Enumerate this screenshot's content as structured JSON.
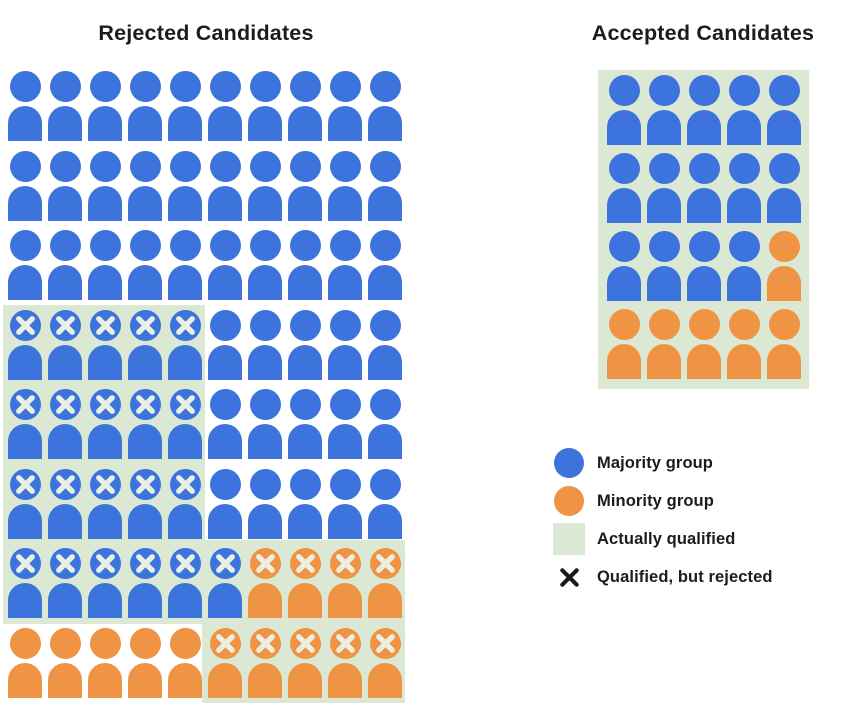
{
  "titles": {
    "rejected": "Rejected Candidates",
    "accepted": "Accepted Candidates"
  },
  "colors": {
    "majority": "#3D73DC",
    "minority": "#EF9444",
    "qualified_bg": "#DBE9D4",
    "x_mark": "#E9F0E2",
    "legend_x": "#1A1A1A",
    "text": "#1C1C1C"
  },
  "rejected_grid": {
    "columns": 10,
    "rows": [
      [
        "B",
        "B",
        "B",
        "B",
        "B",
        "B",
        "B",
        "B",
        "B",
        "B"
      ],
      [
        "B",
        "B",
        "B",
        "B",
        "B",
        "B",
        "B",
        "B",
        "B",
        "B"
      ],
      [
        "B",
        "B",
        "B",
        "B",
        "B",
        "B",
        "B",
        "B",
        "B",
        "B"
      ],
      [
        "BX",
        "BX",
        "BX",
        "BX",
        "BX",
        "B",
        "B",
        "B",
        "B",
        "B"
      ],
      [
        "BX",
        "BX",
        "BX",
        "BX",
        "BX",
        "B",
        "B",
        "B",
        "B",
        "B"
      ],
      [
        "BX",
        "BX",
        "BX",
        "BX",
        "BX",
        "B",
        "B",
        "B",
        "B",
        "B"
      ],
      [
        "BX",
        "BX",
        "BX",
        "BX",
        "BX",
        "BX",
        "OX",
        "OX",
        "OX",
        "OX"
      ],
      [
        "O",
        "O",
        "O",
        "O",
        "O",
        "OX",
        "OX",
        "OX",
        "OX",
        "OX"
      ]
    ]
  },
  "accepted_grid": {
    "columns": 5,
    "rows": [
      [
        "B",
        "B",
        "B",
        "B",
        "B"
      ],
      [
        "B",
        "B",
        "B",
        "B",
        "B"
      ],
      [
        "B",
        "B",
        "B",
        "B",
        "O"
      ],
      [
        "O",
        "O",
        "O",
        "O",
        "O"
      ]
    ]
  },
  "legend": {
    "items": [
      {
        "swatch": "majority-circle",
        "label": "Majority group"
      },
      {
        "swatch": "minority-circle",
        "label": "Minority group"
      },
      {
        "swatch": "qualified-square",
        "label": "Actually qualified"
      },
      {
        "swatch": "x-mark",
        "label": "Qualified, but rejected"
      }
    ]
  },
  "chart_data": {
    "type": "pictogram",
    "legend": [
      "Majority group",
      "Minority group",
      "Actually qualified",
      "Qualified, but rejected"
    ],
    "legend_position": "right-bottom",
    "panels": [
      {
        "title": "Rejected Candidates",
        "grid": {
          "rows": 8,
          "columns": 10
        },
        "counts": {
          "total": 80,
          "majority_total": 66,
          "minority_total": 14,
          "majority_qualified_but_rejected": 21,
          "minority_qualified_but_rejected": 9,
          "qualified_but_rejected_total": 30
        }
      },
      {
        "title": "Accepted Candidates",
        "grid": {
          "rows": 4,
          "columns": 5
        },
        "counts": {
          "total": 20,
          "majority_total": 14,
          "minority_total": 6,
          "actually_qualified_total": 20
        }
      }
    ]
  }
}
